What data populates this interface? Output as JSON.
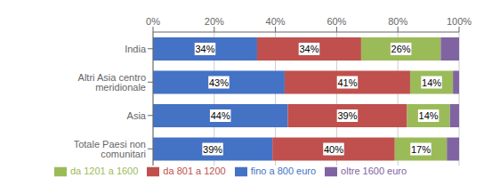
{
  "chart_data": {
    "type": "bar",
    "orientation": "horizontal",
    "stacked": true,
    "data_labels": true,
    "grid": true,
    "legend": "bottom",
    "categories": [
      "India",
      "Altri Asia centro meridionale",
      "Asia",
      "Totale Paesi non comunitari"
    ],
    "series": [
      {
        "name": "fino a 800 euro",
        "color": "#4472C4",
        "values": [
          34,
          43,
          44,
          39
        ],
        "value_labels": [
          "34%",
          "43%",
          "44%",
          "39%"
        ]
      },
      {
        "name": "da 801 a 1200",
        "color": "#C0504D",
        "values": [
          34,
          41,
          39,
          40
        ],
        "value_labels": [
          "34%",
          "41%",
          "39%",
          "40%"
        ]
      },
      {
        "name": "da 1201 a 1600",
        "color": "#9BBB59",
        "values": [
          26,
          14,
          14,
          17
        ],
        "value_labels": [
          "26%",
          "14%",
          "14%",
          "17%"
        ]
      },
      {
        "name": "oltre 1600 euro",
        "color": "#8064A2",
        "values": [
          6,
          2,
          3,
          4
        ]
      }
    ],
    "xlim": [
      0,
      100
    ],
    "xticks": [
      {
        "value": 0,
        "label": "0%"
      },
      {
        "value": 20,
        "label": "20%"
      },
      {
        "value": 40,
        "label": "40%"
      },
      {
        "value": 60,
        "label": "60%"
      },
      {
        "value": 80,
        "label": "80%"
      },
      {
        "value": 100,
        "label": "100%"
      }
    ]
  }
}
